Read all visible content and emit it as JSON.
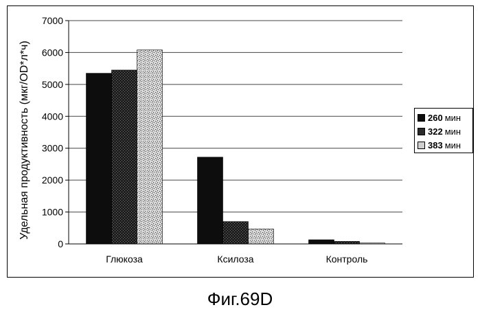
{
  "chart_data": {
    "type": "bar",
    "categories": [
      "Глюкоза",
      "Ксилоза",
      "Контроль"
    ],
    "series": [
      {
        "name": "260",
        "unit": "мин",
        "values": [
          5350,
          2720,
          130
        ],
        "color": "#111111"
      },
      {
        "name": "322",
        "unit": "мин",
        "values": [
          5450,
          700,
          80
        ],
        "color": "#2a2a2a"
      },
      {
        "name": "383",
        "unit": "мин",
        "values": [
          6080,
          470,
          30
        ],
        "color": "#b8b8b8"
      }
    ],
    "title": "",
    "xlabel": "",
    "ylabel": "Удельная продуктивность (мкг/OD*л*ч)",
    "ylim": [
      0,
      7000
    ],
    "yticks": [
      0,
      1000,
      2000,
      3000,
      4000,
      5000,
      6000,
      7000
    ],
    "grid": true,
    "legend_position": "right"
  },
  "caption": "Фиг.69D"
}
